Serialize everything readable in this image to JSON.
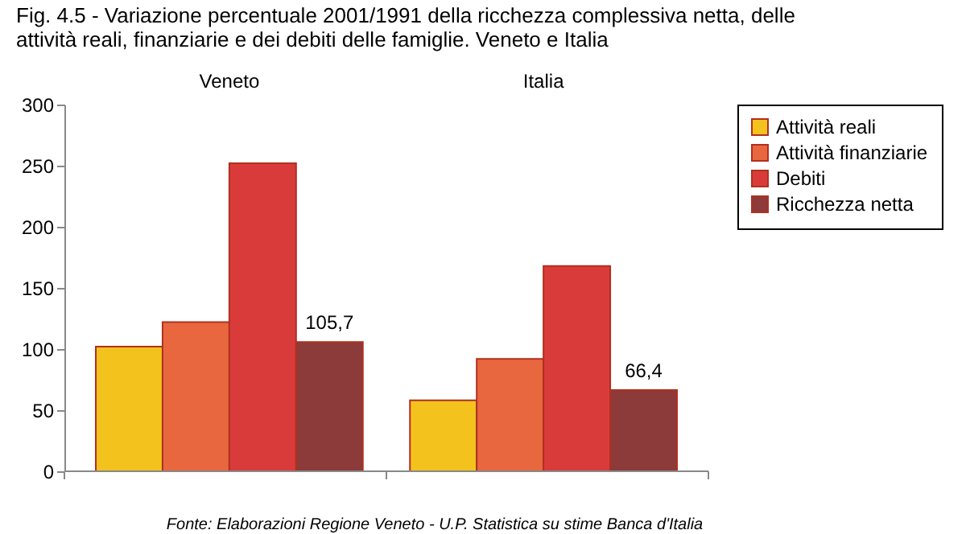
{
  "chart_data": {
    "type": "bar",
    "title": "Fig. 4.5 - Variazione percentuale 2001/1991 della ricchezza complessiva netta, delle attività reali, finanziarie e dei debiti delle famiglie. Veneto e Italia",
    "categories": [
      "Veneto",
      "Italia"
    ],
    "series": [
      {
        "name": "Attività reali",
        "color": "#f3c21c",
        "values": [
          102,
          58
        ]
      },
      {
        "name": "Attività finanziarie",
        "color": "#e9673e",
        "values": [
          122,
          92
        ]
      },
      {
        "name": "Debiti",
        "color": "#d93b3b",
        "values": [
          252,
          168
        ]
      },
      {
        "name": "Ricchezza netta",
        "color": "#8c3a3a",
        "values": [
          105.7,
          66.4
        ],
        "value_labels": [
          "105,7",
          "66,4"
        ]
      }
    ],
    "ylim": [
      0,
      300
    ],
    "yticks": [
      0,
      50,
      100,
      150,
      200,
      250,
      300
    ],
    "grid": false,
    "legend": "right",
    "annotations": [
      "Fonte: Elaborazioni Regione Veneto - U.P. Statistica su stime Banca d'Italia"
    ]
  }
}
